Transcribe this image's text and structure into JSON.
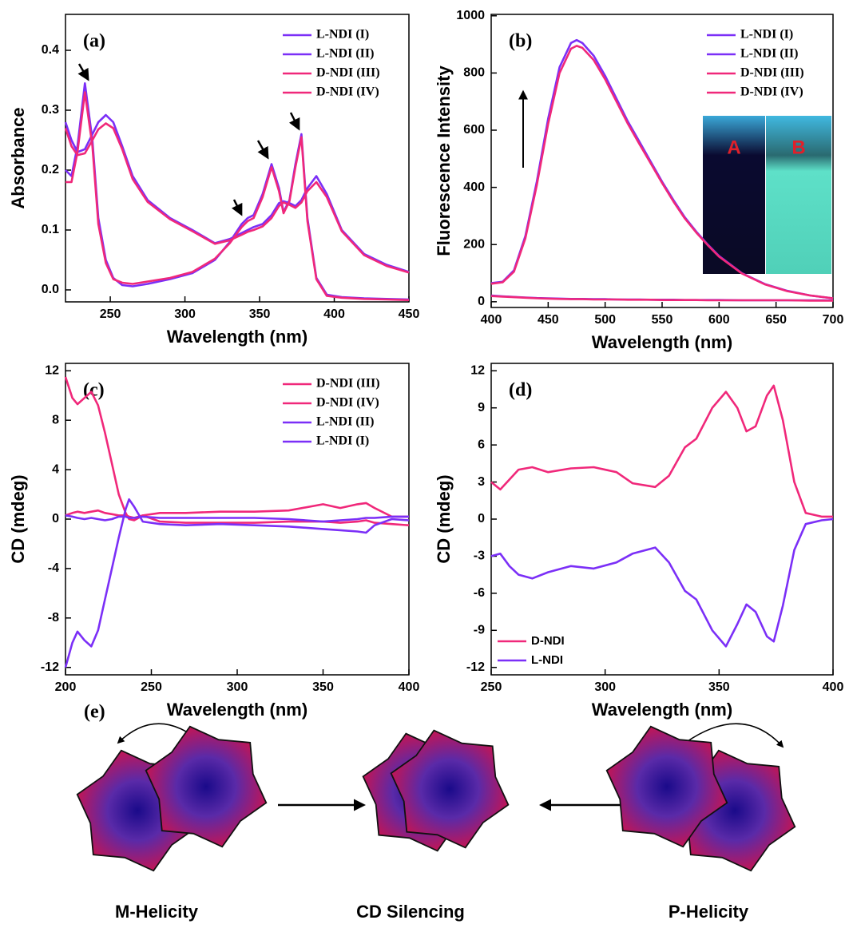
{
  "chart_data": [
    {
      "type": "line",
      "label": "(a)",
      "xlabel": "Wavelength (nm)",
      "ylabel": "Absorbance",
      "legend": "upper right",
      "xlim": [
        220,
        450
      ],
      "xticks": [
        250,
        300,
        350,
        400,
        450
      ],
      "ylim": [
        -0.02,
        0.46
      ],
      "yticks": [
        {
          "value": 0,
          "label": "0.0"
        },
        0.1,
        0.2,
        0.3,
        0.4
      ],
      "x": [
        220,
        224,
        228,
        233,
        238,
        242,
        247,
        252,
        258,
        265,
        275,
        290,
        305,
        320,
        330,
        338,
        342,
        346,
        352,
        358,
        363,
        366,
        370,
        374,
        378,
        382,
        388,
        395,
        405,
        420,
        435,
        450
      ],
      "series": [
        {
          "name": "L-NDI (I)",
          "color": "#7b2ff7",
          "values": [
            0.28,
            0.25,
            0.23,
            0.235,
            0.26,
            0.28,
            0.292,
            0.28,
            0.24,
            0.19,
            0.15,
            0.12,
            0.1,
            0.078,
            0.085,
            0.095,
            0.1,
            0.105,
            0.11,
            0.125,
            0.145,
            0.148,
            0.145,
            0.14,
            0.15,
            0.17,
            0.19,
            0.16,
            0.1,
            0.06,
            0.042,
            0.03
          ]
        },
        {
          "name": "L-NDI (II)",
          "color": "#7b2ff7",
          "values": [
            0.2,
            0.19,
            0.24,
            0.345,
            0.25,
            0.12,
            0.05,
            0.02,
            0.008,
            0.006,
            0.01,
            0.018,
            0.028,
            0.05,
            0.08,
            0.11,
            0.12,
            0.125,
            0.16,
            0.21,
            0.17,
            0.13,
            0.15,
            0.21,
            0.26,
            0.12,
            0.02,
            -0.008,
            -0.012,
            -0.014,
            -0.015,
            -0.016
          ]
        },
        {
          "name": "D-NDI (III)",
          "color": "#f0287a",
          "values": [
            0.18,
            0.18,
            0.23,
            0.33,
            0.24,
            0.11,
            0.045,
            0.018,
            0.012,
            0.01,
            0.014,
            0.02,
            0.03,
            0.052,
            0.078,
            0.105,
            0.115,
            0.12,
            0.155,
            0.205,
            0.165,
            0.128,
            0.148,
            0.205,
            0.255,
            0.115,
            0.018,
            -0.01,
            -0.013,
            -0.015,
            -0.016,
            -0.017
          ]
        },
        {
          "name": "D-NDI (IV)",
          "color": "#f0287a",
          "values": [
            0.27,
            0.24,
            0.225,
            0.228,
            0.25,
            0.268,
            0.278,
            0.27,
            0.235,
            0.185,
            0.147,
            0.118,
            0.098,
            0.077,
            0.083,
            0.092,
            0.097,
            0.1,
            0.106,
            0.12,
            0.14,
            0.146,
            0.142,
            0.137,
            0.146,
            0.165,
            0.18,
            0.155,
            0.098,
            0.058,
            0.04,
            0.029
          ]
        }
      ]
    },
    {
      "type": "line",
      "label": "(b)",
      "xlabel": "Wavelength (nm)",
      "ylabel": "Fluorescence Intensity",
      "legend": "upper right",
      "xlim": [
        400,
        700
      ],
      "xticks": [
        400,
        450,
        500,
        550,
        600,
        650,
        700
      ],
      "ylim": [
        -20,
        1005
      ],
      "yticks": [
        0,
        200,
        400,
        600,
        800,
        1000
      ],
      "photo_labels": [
        "A",
        "B"
      ],
      "x": [
        400,
        410,
        420,
        430,
        440,
        450,
        460,
        470,
        475,
        480,
        490,
        500,
        510,
        520,
        530,
        540,
        550,
        560,
        570,
        580,
        590,
        600,
        620,
        640,
        660,
        680,
        700
      ],
      "series": [
        {
          "name": "L-NDI (I)",
          "color": "#7b2ff7",
          "values": [
            22,
            19,
            17,
            15,
            13,
            12,
            11,
            10,
            10,
            10,
            9,
            9,
            8,
            8,
            8,
            7,
            7,
            7,
            6,
            6,
            6,
            6,
            5,
            5,
            5,
            5,
            5
          ]
        },
        {
          "name": "L-NDI (II)",
          "color": "#7b2ff7",
          "values": [
            65,
            70,
            110,
            230,
            420,
            640,
            820,
            905,
            915,
            905,
            860,
            790,
            710,
            630,
            560,
            490,
            420,
            355,
            295,
            245,
            200,
            160,
            100,
            62,
            38,
            22,
            12
          ]
        },
        {
          "name": "D-NDI (III)",
          "color": "#f0287a",
          "values": [
            20,
            18,
            16,
            14,
            12,
            11,
            10,
            9,
            9,
            9,
            8,
            8,
            8,
            7,
            7,
            7,
            6,
            6,
            6,
            6,
            5,
            5,
            5,
            5,
            5,
            4,
            4
          ]
        },
        {
          "name": "D-NDI (IV)",
          "color": "#f0287a",
          "values": [
            63,
            68,
            105,
            222,
            408,
            622,
            800,
            885,
            895,
            888,
            845,
            778,
            700,
            622,
            552,
            484,
            415,
            350,
            291,
            242,
            198,
            158,
            99,
            61,
            37,
            22,
            12
          ]
        }
      ]
    },
    {
      "type": "line",
      "label": "(c)",
      "xlabel": "Wavelength (nm)",
      "ylabel": "CD (mdeg)",
      "legend": "upper right",
      "xlim": [
        200,
        400
      ],
      "xticks": [
        200,
        250,
        300,
        350,
        400
      ],
      "ylim": [
        -12.6,
        12.6
      ],
      "yticks": [
        -12,
        -8,
        -4,
        0,
        4,
        8,
        12
      ],
      "x": [
        200,
        204,
        207,
        211,
        215,
        219,
        223,
        227,
        231,
        235,
        237,
        240,
        245,
        255,
        270,
        290,
        310,
        330,
        350,
        360,
        370,
        375,
        380,
        390,
        400
      ],
      "series": [
        {
          "name": "D-NDI (III)",
          "color": "#f0287a",
          "values": [
            11.5,
            9.8,
            9.3,
            9.8,
            10.3,
            9.2,
            7,
            4.5,
            2,
            0.5,
            0,
            -0.1,
            0.3,
            0.5,
            0.5,
            0.6,
            0.6,
            0.7,
            1.2,
            0.9,
            1.2,
            1.3,
            0.9,
            0.2,
            0.2
          ]
        },
        {
          "name": "D-NDI (IV)",
          "color": "#f0287a",
          "values": [
            0.3,
            0.5,
            0.6,
            0.5,
            0.6,
            0.7,
            0.5,
            0.4,
            0.3,
            0.3,
            0.2,
            0.1,
            0.3,
            -0.2,
            -0.3,
            -0.3,
            -0.3,
            -0.2,
            -0.2,
            -0.3,
            -0.2,
            -0.1,
            -0.3,
            -0.4,
            -0.5
          ]
        },
        {
          "name": "L-NDI (II)",
          "color": "#7b2ff7",
          "values": [
            -12,
            -10,
            -9.1,
            -9.8,
            -10.3,
            -9,
            -6.5,
            -4,
            -1.5,
            0.8,
            1.6,
            1,
            -0.2,
            -0.4,
            -0.5,
            -0.4,
            -0.5,
            -0.6,
            -0.8,
            -0.9,
            -1,
            -1.1,
            -0.5,
            0,
            -0.1
          ]
        },
        {
          "name": "L-NDI (I)",
          "color": "#7b2ff7",
          "values": [
            0.3,
            0.2,
            0.1,
            0,
            0.1,
            0,
            -0.1,
            0,
            0.2,
            0.2,
            0.1,
            0.1,
            0.2,
            0.1,
            0.1,
            0.1,
            0.1,
            0,
            -0.2,
            -0.1,
            0,
            0.1,
            0.1,
            0.2,
            0.2
          ]
        }
      ]
    },
    {
      "type": "line",
      "label": "(d)",
      "xlabel": "Wavelength (nm)",
      "ylabel": "CD (mdeg)",
      "legend": "lower left",
      "xlim": [
        250,
        400
      ],
      "xticks": [
        250,
        300,
        350,
        400
      ],
      "ylim": [
        -12.6,
        12.6
      ],
      "yticks": [
        -12,
        -9,
        -6,
        -3,
        0,
        3,
        6,
        9,
        12
      ],
      "x": [
        250,
        254,
        258,
        262,
        268,
        275,
        285,
        295,
        305,
        312,
        322,
        328,
        335,
        340,
        347,
        353,
        358,
        362,
        366,
        371,
        374,
        378,
        383,
        388,
        395,
        400
      ],
      "series": [
        {
          "name": "D-NDI",
          "color": "#f0287a",
          "values": [
            3,
            2.4,
            3.2,
            4,
            4.2,
            3.8,
            4.1,
            4.2,
            3.8,
            2.9,
            2.6,
            3.5,
            5.8,
            6.5,
            9,
            10.3,
            9,
            7.1,
            7.5,
            10,
            10.8,
            8,
            3,
            0.5,
            0.2,
            0.2
          ]
        },
        {
          "name": "L-NDI",
          "color": "#7b2ff7",
          "values": [
            -3,
            -2.8,
            -3.8,
            -4.5,
            -4.8,
            -4.3,
            -3.8,
            -4,
            -3.5,
            -2.8,
            -2.3,
            -3.5,
            -5.8,
            -6.5,
            -9,
            -10.3,
            -8.5,
            -6.9,
            -7.5,
            -9.5,
            -9.9,
            -7,
            -2.5,
            -0.4,
            -0.1,
            0
          ]
        }
      ]
    }
  ],
  "scheme": {
    "label": "(e)",
    "captions": [
      "M-Helicity",
      "CD Silencing",
      "P-Helicity"
    ]
  }
}
